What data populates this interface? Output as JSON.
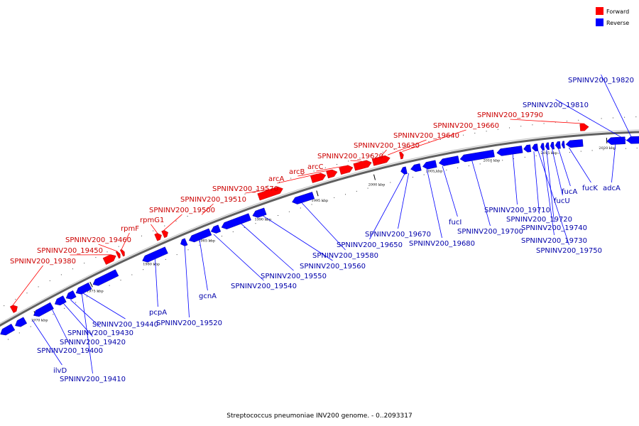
{
  "caption": "Streptococcus pneumoniae INV200 genome. - 0..2093317",
  "legend": [
    {
      "label": "Forward",
      "color": "#ff0000"
    },
    {
      "label": "Reverse",
      "color": "#0000ff"
    }
  ],
  "colors": {
    "forward": "#ff0000",
    "reverse": "#0000ff",
    "forward_label": "#cc0000",
    "reverse_label": "#0000aa",
    "backbone": "#808080"
  },
  "ticks": [
    {
      "label": "1970 kbp"
    },
    {
      "label": "1975 kbp"
    },
    {
      "label": "1980 kbp"
    },
    {
      "label": "1985 kbp"
    },
    {
      "label": "1990 kbp"
    },
    {
      "label": "1995 kbp"
    },
    {
      "label": "2000 kbp"
    },
    {
      "label": "2005 kbp"
    },
    {
      "label": "2010 kbp"
    },
    {
      "label": "2015 kbp"
    },
    {
      "label": "2020 kbp"
    }
  ],
  "forward_labels": [
    {
      "text": "SPNINV200_19380"
    },
    {
      "text": "SPNINV200_19450"
    },
    {
      "text": "SPNINV200_19460"
    },
    {
      "text": "rpmF"
    },
    {
      "text": "rpmG1"
    },
    {
      "text": "SPNINV200_19500"
    },
    {
      "text": "SPNINV200_19510"
    },
    {
      "text": "SPNINV200_19570"
    },
    {
      "text": "arcA"
    },
    {
      "text": "arcB"
    },
    {
      "text": "arcC"
    },
    {
      "text": "SPNINV200_19620"
    },
    {
      "text": "SPNINV200_19630"
    },
    {
      "text": "SPNINV200_19640"
    },
    {
      "text": "SPNINV200_19660"
    },
    {
      "text": "SPNINV200_19790"
    }
  ],
  "reverse_labels": [
    {
      "text": "SPNINV200_19820"
    },
    {
      "text": "SPNINV200_19810"
    },
    {
      "text": "fucK"
    },
    {
      "text": "adcA"
    },
    {
      "text": "fucA"
    },
    {
      "text": "fucU"
    },
    {
      "text": "SPNINV200_19740"
    },
    {
      "text": "SPNINV200_19730"
    },
    {
      "text": "SPNINV200_19750"
    },
    {
      "text": "SPNINV200_19710"
    },
    {
      "text": "SPNINV200_19720"
    },
    {
      "text": "SPNINV200_19700"
    },
    {
      "text": "fucI"
    },
    {
      "text": "SPNINV200_19680"
    },
    {
      "text": "SPNINV200_19670"
    },
    {
      "text": "SPNINV200_19650"
    },
    {
      "text": "SPNINV200_19580"
    },
    {
      "text": "SPNINV200_19560"
    },
    {
      "text": "SPNINV200_19550"
    },
    {
      "text": "SPNINV200_19540"
    },
    {
      "text": "gcnA"
    },
    {
      "text": "SPNINV200_19520"
    },
    {
      "text": "pcpA"
    },
    {
      "text": "SPNINV200_19440"
    },
    {
      "text": "SPNINV200_19430"
    },
    {
      "text": "SPNINV200_19420"
    },
    {
      "text": "SPNINV200_19400"
    },
    {
      "text": "ilvD"
    },
    {
      "text": "SPNINV200_19410"
    }
  ]
}
